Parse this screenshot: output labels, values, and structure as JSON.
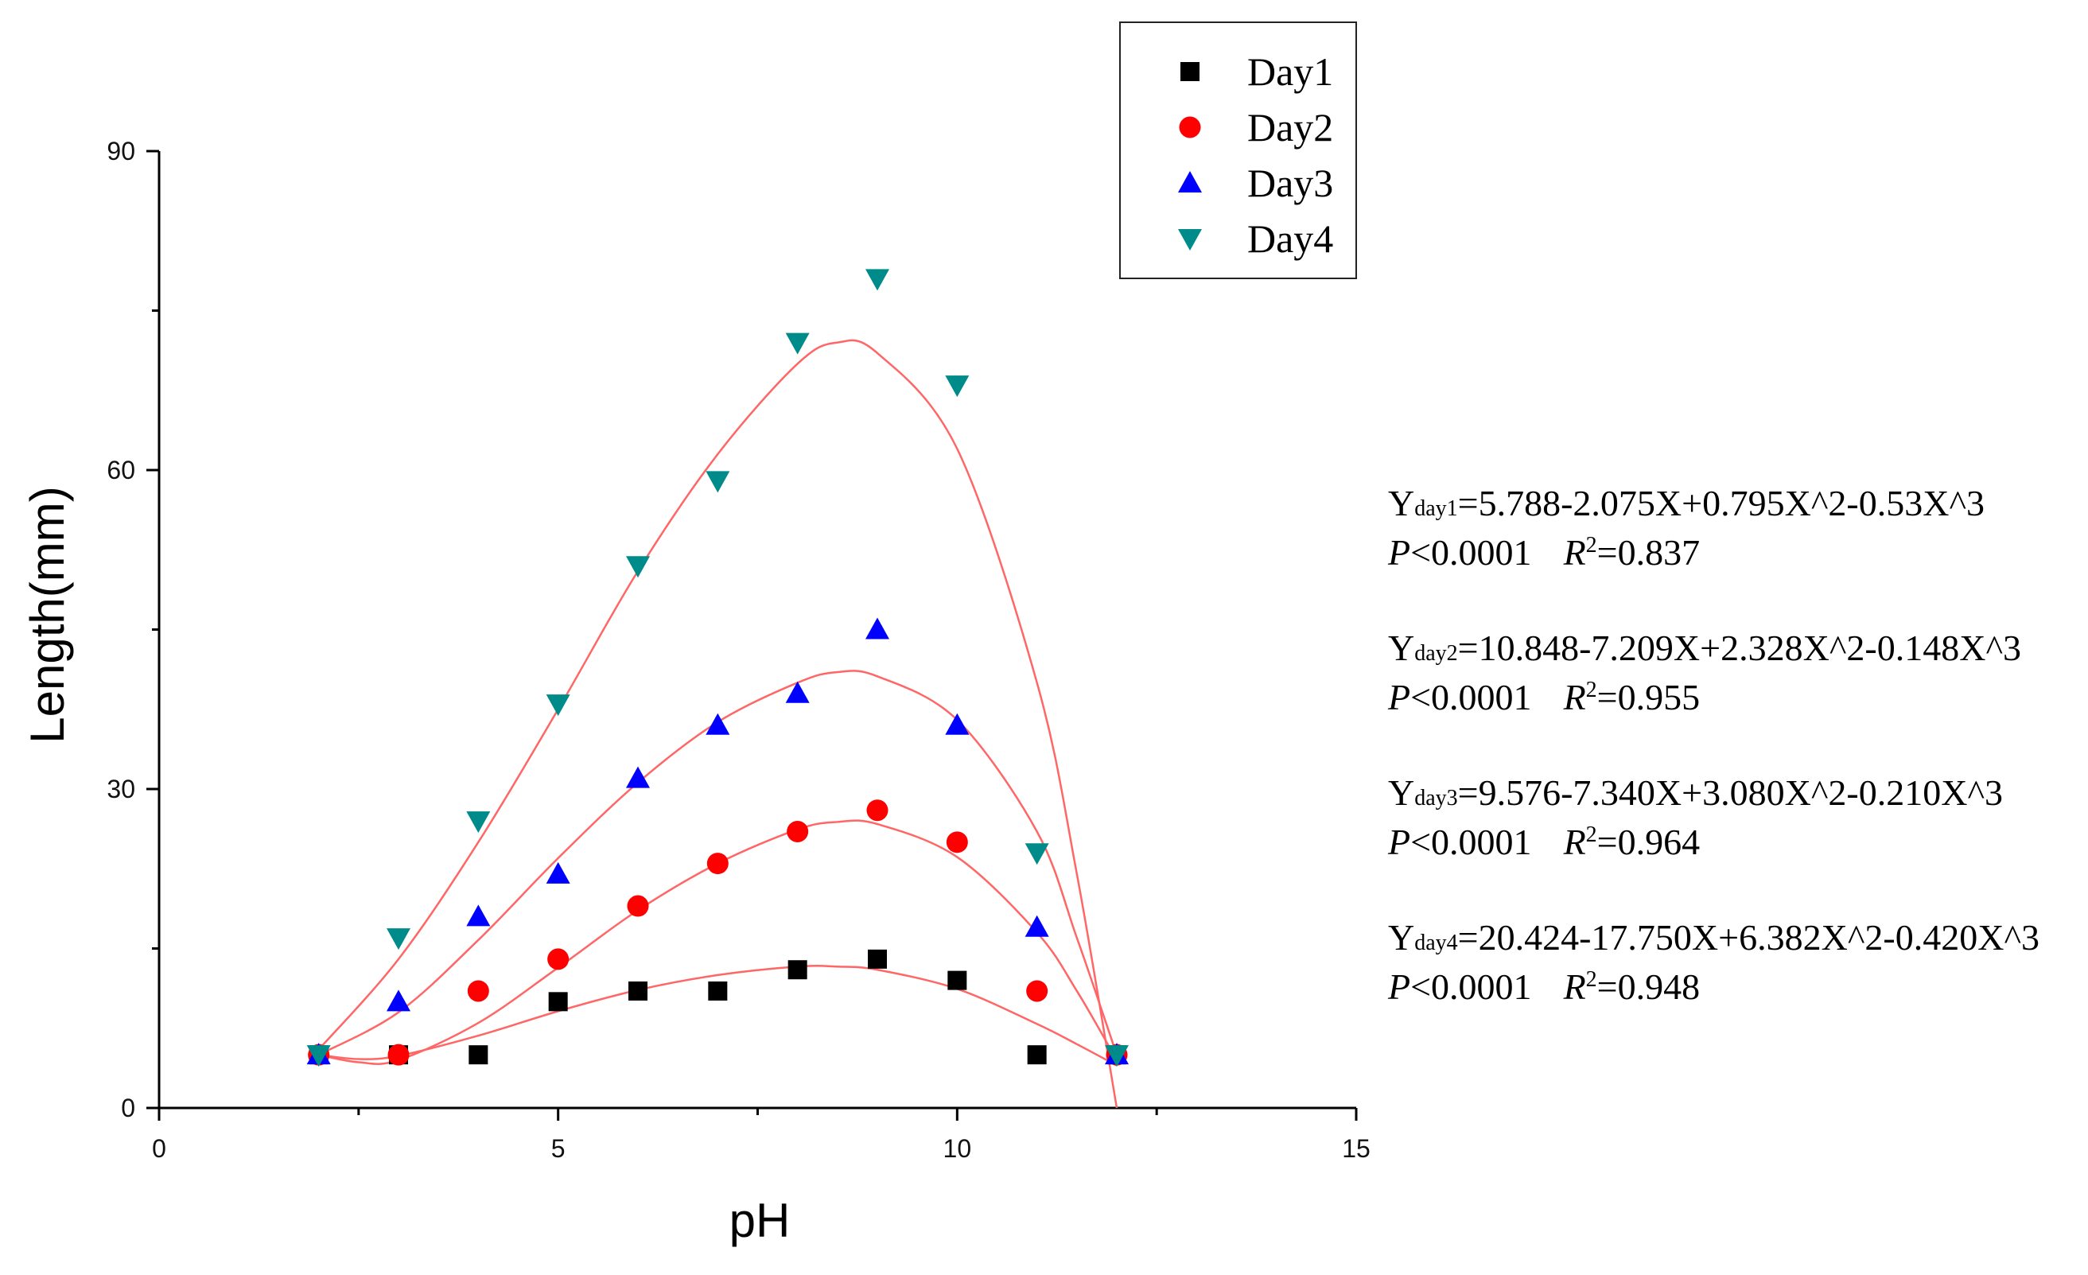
{
  "chart_data": {
    "type": "scatter",
    "title": "",
    "xlabel": "pH",
    "ylabel": "Length(mm)",
    "xlim": [
      0,
      15
    ],
    "ylim": [
      0,
      90
    ],
    "xticks": [
      0,
      5,
      10,
      15
    ],
    "yticks": [
      0,
      30,
      60,
      90
    ],
    "xtick_labels": [
      "0",
      "5",
      "10",
      "15"
    ],
    "ytick_labels": [
      "0",
      "30",
      "60",
      "90"
    ],
    "grid": false,
    "legend_position": "top-right",
    "series": [
      {
        "name": "Day1",
        "marker": "square",
        "color": "#000000",
        "x": [
          2,
          3,
          4,
          5,
          6,
          7,
          8,
          9,
          10,
          11,
          12
        ],
        "y": [
          5,
          5,
          5,
          10,
          11,
          11,
          13,
          14,
          12,
          5,
          5
        ],
        "fit_curve": [
          [
            2.0,
            5.0
          ],
          [
            2.5,
            4.6
          ],
          [
            3.0,
            4.9
          ],
          [
            4.0,
            6.8
          ],
          [
            5.0,
            9.1
          ],
          [
            6.0,
            11.1
          ],
          [
            7.0,
            12.5
          ],
          [
            8.0,
            13.3
          ],
          [
            8.5,
            13.3
          ],
          [
            9.0,
            13.0
          ],
          [
            10.0,
            11.2
          ],
          [
            11.0,
            7.9
          ],
          [
            11.5,
            6.0
          ],
          [
            12.0,
            4.0
          ]
        ]
      },
      {
        "name": "Day2",
        "marker": "circle",
        "color": "#ff0000",
        "x": [
          2,
          3,
          4,
          5,
          6,
          7,
          8,
          9,
          10,
          11,
          12
        ],
        "y": [
          5,
          5,
          11,
          14,
          19,
          23,
          26,
          28,
          25,
          11,
          5
        ],
        "fit_curve": [
          [
            2.0,
            5.0
          ],
          [
            2.5,
            4.3
          ],
          [
            3.0,
            4.5
          ],
          [
            4.0,
            8.0
          ],
          [
            5.0,
            13.2
          ],
          [
            6.0,
            18.6
          ],
          [
            7.0,
            23.0
          ],
          [
            8.0,
            26.2
          ],
          [
            8.5,
            26.9
          ],
          [
            9.0,
            26.7
          ],
          [
            10.0,
            23.6
          ],
          [
            11.0,
            16.5
          ],
          [
            11.5,
            11.0
          ],
          [
            12.0,
            4.5
          ]
        ]
      },
      {
        "name": "Day3",
        "marker": "triangle-up",
        "color": "#0000ff",
        "x": [
          2,
          3,
          4,
          5,
          6,
          7,
          8,
          9,
          10,
          11,
          12
        ],
        "y": [
          5,
          10,
          18,
          22,
          31,
          36,
          39,
          45,
          36,
          17,
          5
        ],
        "fit_curve": [
          [
            2.0,
            5.0
          ],
          [
            3.0,
            9.0
          ],
          [
            4.0,
            15.8
          ],
          [
            5.0,
            23.5
          ],
          [
            6.0,
            30.6
          ],
          [
            7.0,
            36.3
          ],
          [
            8.0,
            40.0
          ],
          [
            8.5,
            41.0
          ],
          [
            9.0,
            40.6
          ],
          [
            10.0,
            36.5
          ],
          [
            11.0,
            26.0
          ],
          [
            11.5,
            16.0
          ],
          [
            12.0,
            5.0
          ]
        ]
      },
      {
        "name": "Day4",
        "marker": "triangle-down",
        "color": "#008b8b",
        "x": [
          2,
          3,
          4,
          5,
          6,
          7,
          8,
          9,
          10,
          11,
          12
        ],
        "y": [
          5,
          16,
          27,
          38,
          51,
          59,
          72,
          78,
          68,
          24,
          5
        ],
        "fit_curve": [
          [
            2.0,
            5.5
          ],
          [
            3.0,
            14.0
          ],
          [
            4.0,
            25.0
          ],
          [
            5.0,
            37.5
          ],
          [
            6.0,
            50.5
          ],
          [
            7.0,
            61.5
          ],
          [
            8.0,
            70.0
          ],
          [
            8.5,
            72.0
          ],
          [
            9.0,
            71.0
          ],
          [
            10.0,
            62.0
          ],
          [
            11.0,
            40.0
          ],
          [
            11.5,
            22.0
          ],
          [
            12.0,
            0.0
          ]
        ]
      }
    ],
    "annotations": [
      {
        "equation_prefix": "Y",
        "equation_sub": "day1",
        "equation_body": "=5.788-2.075X+0.795X^2-0.53X^3",
        "p_symbol": "P",
        "p_value": "<0.0001",
        "r_symbol": "R",
        "r_sup": "2",
        "r_value": "=0.837"
      },
      {
        "equation_prefix": "Y",
        "equation_sub": "day2",
        "equation_body": "=10.848-7.209X+2.328X^2-0.148X^3",
        "p_symbol": "P",
        "p_value": "<0.0001",
        "r_symbol": "R",
        "r_sup": "2",
        "r_value": "=0.955"
      },
      {
        "equation_prefix": "Y",
        "equation_sub": "day3",
        "equation_body": "=9.576-7.340X+3.080X^2-0.210X^3",
        "p_symbol": "P",
        "p_value": "<0.0001",
        "r_symbol": "R",
        "r_sup": "2",
        "r_value": "=0.964"
      },
      {
        "equation_prefix": "Y",
        "equation_sub": "day4",
        "equation_body": "=20.424-17.750X+6.382X^2-0.420X^3",
        "p_symbol": "P",
        "p_value": "<0.0001",
        "r_symbol": "R",
        "r_sup": "2",
        "r_value": "=0.948"
      }
    ],
    "fit_line_color": "#ff6666"
  }
}
